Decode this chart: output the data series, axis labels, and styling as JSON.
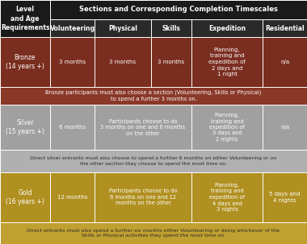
{
  "title": "Sections and Corresponding Completion Timescales",
  "header_left": "Level\nand Age\nRequirements",
  "columns": [
    "Volunteering",
    "Physical",
    "Skills",
    "Expedition",
    "Residential"
  ],
  "header_bg": "#1a1a1a",
  "col_header_bg": "#2a2a2a",
  "bronze_color": "#7a2e20",
  "bronze_note_color": "#8a3828",
  "silver_color": "#a0a0a0",
  "silver_note_color": "#b0b0b0",
  "gold_color": "#b09020",
  "gold_note_color": "#c0a030",
  "rows": [
    {
      "level": "Bronze\n(14 years +)",
      "cells": [
        "3 months",
        "3 months",
        "3 months",
        "Planning,\ntraining and\nexpedition of\n2 days and\n1 night",
        "n/a"
      ],
      "note": "Bronze participants must also choose a section (Volunteering, Skills or Physical)\nto spend a further 3 months on."
    },
    {
      "level": "Silver\n(15 years +)",
      "cells": [
        "6 months",
        "Participants choose to do\n3 months on one and 6 months\non the other",
        "Planning,\ntraining and\nexpedition of\n3 days and\n2 nights",
        "n/a"
      ],
      "note": "Direct silver entrants must also choose to spend a further 6 months on either Volunteering or on\nthe other section they choose to spend the most time on."
    },
    {
      "level": "Gold\n(16 years +)",
      "cells": [
        "12 months",
        "Participants choose to do\n6 months on one and 12\nmonths on the other",
        "Planning,\ntraining and\nexpedition of\n4 days and\n3 nights",
        "5 days and\n4 nights"
      ],
      "note": "Direct entrants must also spend a further six months either Volunteering or doing whichever of the\nSkills or Physical activities they spend the most time on."
    }
  ]
}
